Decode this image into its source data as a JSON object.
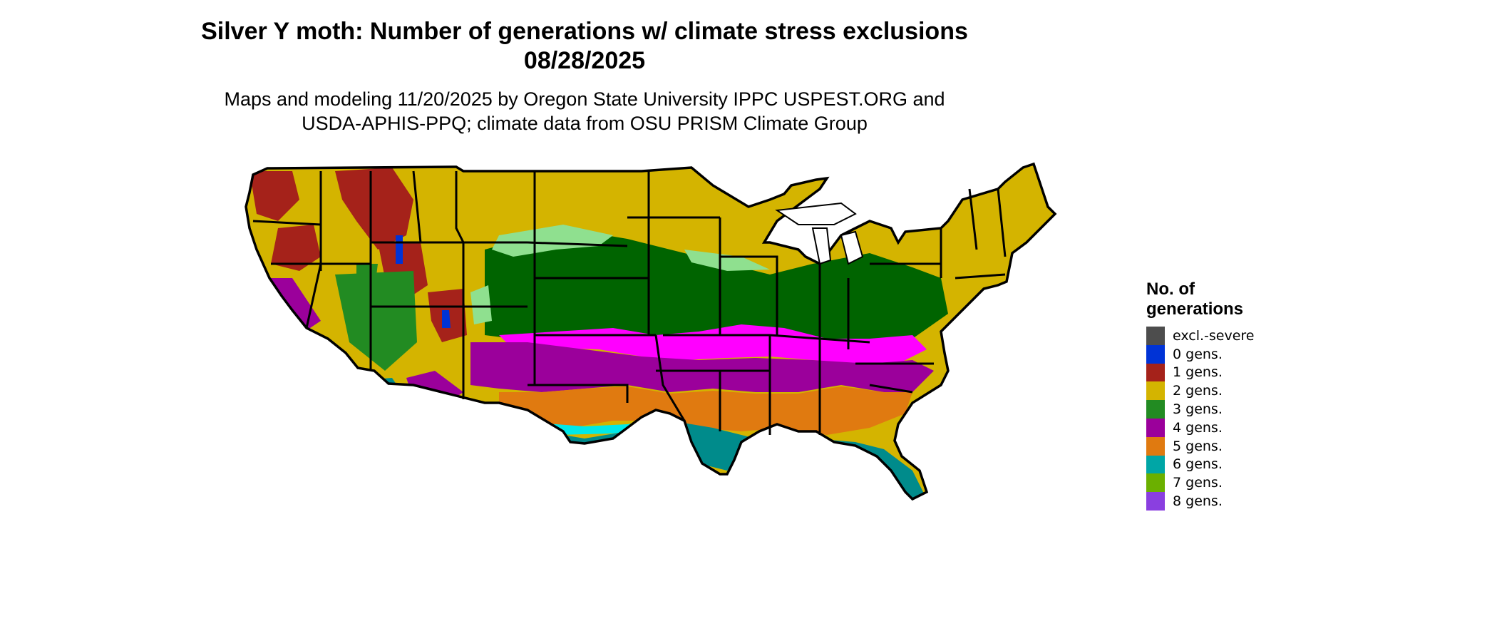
{
  "header": {
    "title_line1": "Silver Y moth: Number of generations w/ climate stress exclusions",
    "title_line2": "08/28/2025",
    "subtitle_line1": "Maps and modeling 11/20/2025 by Oregon State University IPPC USPEST.ORG and",
    "subtitle_line2": "USDA-APHIS-PPQ; climate data from OSU PRISM Climate Group"
  },
  "legend": {
    "title_line1": "No. of",
    "title_line2": "generations",
    "items": [
      {
        "label": "excl.-severe",
        "color": "#4d4d4d"
      },
      {
        "label": "0 gens.",
        "color": "#0033d6"
      },
      {
        "label": "1 gens.",
        "color": "#a5221a"
      },
      {
        "label": "2 gens.",
        "color": "#d4b400"
      },
      {
        "label": "3 gens.",
        "color": "#228b22"
      },
      {
        "label": "4 gens.",
        "color": "#9b009b"
      },
      {
        "label": "5 gens.",
        "color": "#e07a10"
      },
      {
        "label": "6 gens.",
        "color": "#00a6a6"
      },
      {
        "label": "7 gens.",
        "color": "#6bb000"
      },
      {
        "label": "8 gens.",
        "color": "#8a3fe0"
      }
    ]
  },
  "map_colors": {
    "dark_green": "#006400",
    "light_green": "#8fe08f",
    "magenta": "#ff00ff",
    "cyan": "#00e8e8",
    "teal": "#008b8b",
    "olive": "#c8a800"
  }
}
